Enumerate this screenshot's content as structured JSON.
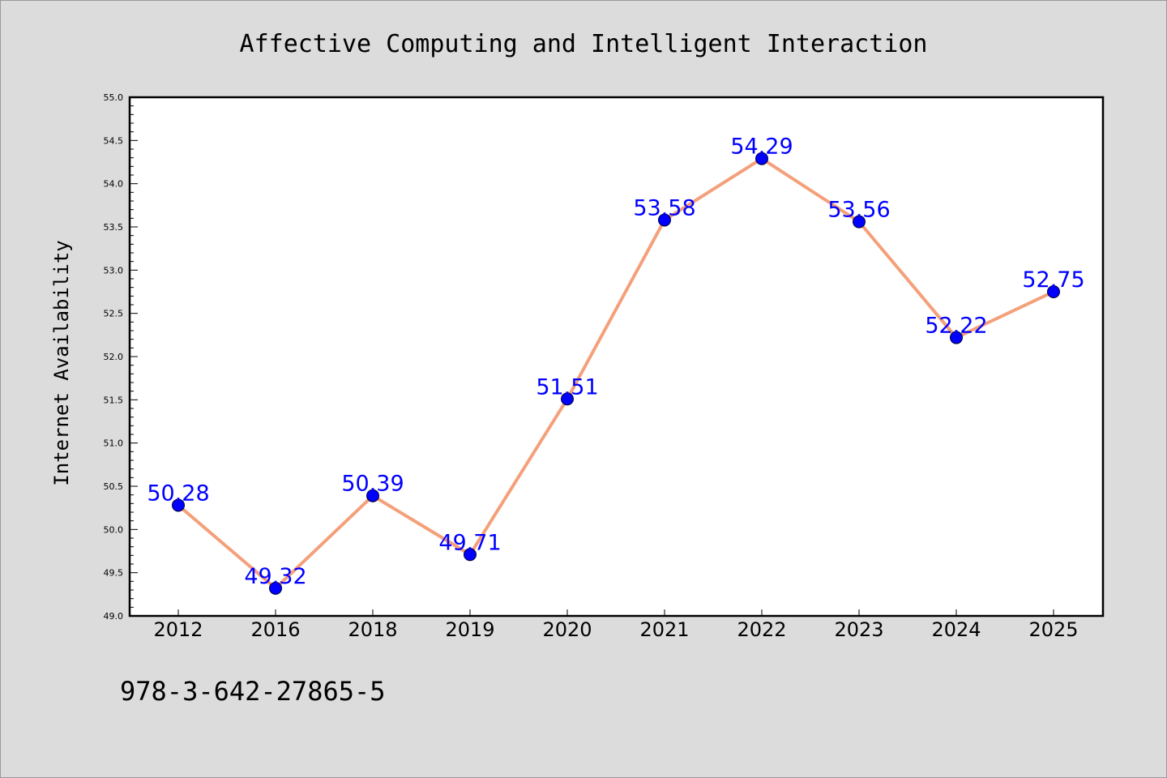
{
  "chart_data": {
    "type": "line",
    "title": "Affective Computing and Intelligent Interaction",
    "xlabel": "",
    "ylabel": "Internet Availability",
    "categories": [
      "2012",
      "2016",
      "2018",
      "2019",
      "2020",
      "2021",
      "2022",
      "2023",
      "2024",
      "2025"
    ],
    "values": [
      50.28,
      49.32,
      50.39,
      49.71,
      51.51,
      53.58,
      54.29,
      53.56,
      52.22,
      52.75
    ],
    "data_labels": [
      "50.28",
      "49.32",
      "50.39",
      "49.71",
      "51.51",
      "53.58",
      "54.29",
      "53.56",
      "52.22",
      "52.75"
    ],
    "ylim": [
      49.0,
      55.0
    ],
    "yticks": [
      "49.0",
      "49.5",
      "50.0",
      "50.5",
      "51.0",
      "51.5",
      "52.0",
      "52.5",
      "53.0",
      "53.5",
      "54.0",
      "54.5",
      "55.0"
    ],
    "grid": false,
    "legend": "none",
    "colors": {
      "line": "#f4a07a",
      "marker": "#0000ff",
      "label": "#0000ff",
      "background": "#dcdcdc",
      "plot_area": "#ffffff"
    }
  },
  "footnote": "978-3-642-27865-5"
}
